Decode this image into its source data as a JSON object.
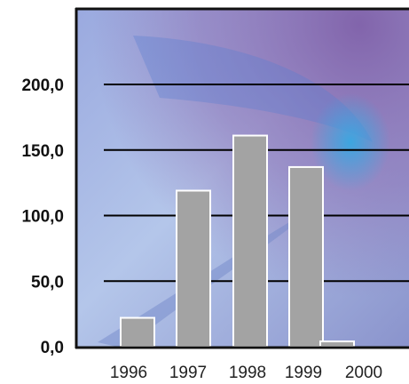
{
  "chart_data": {
    "type": "bar",
    "title": "",
    "xlabel": "",
    "ylabel": "",
    "categories": [
      "1996",
      "1997",
      "1998",
      "1999",
      "2000"
    ],
    "values": [
      22,
      119,
      161,
      137,
      4
    ],
    "ylim": [
      0,
      200
    ],
    "yticks": [
      0,
      50,
      100,
      150,
      200
    ],
    "ytick_labels": [
      "0,0",
      "50,0",
      "100,0",
      "150,0",
      "200,0"
    ],
    "grid": true,
    "legend": "none",
    "colors": {
      "bar_fill": "#a3a3a3",
      "bar_stroke": "#ffffff",
      "gridline": "#000000",
      "frame": "#111111",
      "background_light": "#a9c3e8",
      "background_purple": "#8c6fb0",
      "background_glow": "#3fa9df"
    }
  }
}
